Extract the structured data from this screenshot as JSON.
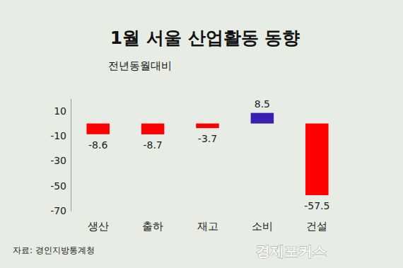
{
  "chart_data": {
    "type": "bar",
    "title": "1월 서울 산업활동 동향",
    "subtitle": "전년동월대비",
    "categories": [
      "생산",
      "출하",
      "재고",
      "소비",
      "건설"
    ],
    "values": [
      -8.6,
      -8.7,
      -3.7,
      8.5,
      -57.5
    ],
    "colors": [
      "#ff0000",
      "#ff0000",
      "#ff0000",
      "#3a1db3",
      "#ff0000"
    ],
    "ylim": [
      -70,
      20
    ],
    "yticks": [
      -70,
      -50,
      -30,
      -10,
      10
    ],
    "data_labels": true,
    "grid": false,
    "annotations": [
      "자료: 경인지방통계청",
      "경제포커스"
    ]
  }
}
